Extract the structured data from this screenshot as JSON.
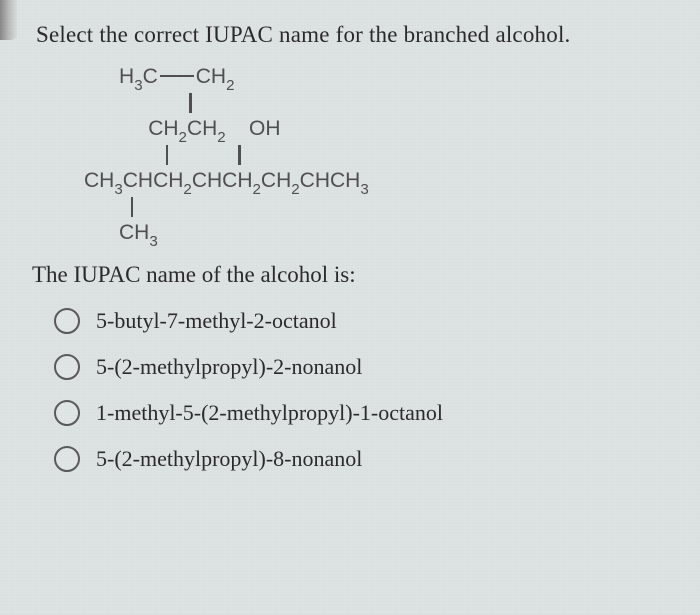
{
  "question": "Select the correct IUPAC name for the branched alcohol.",
  "structure": {
    "row1_a": "H",
    "row1_b": "C",
    "row1_c": "CH",
    "row2_a": "CH",
    "row2_b": "CH",
    "row2_c": "OH",
    "row3_a": "CH",
    "row3_b": "CHCH",
    "row3_c": "CHCH",
    "row3_d": "CH",
    "row3_e": "CHCH",
    "row4": "CH",
    "sub3": "3",
    "sub2": "2"
  },
  "prompt": "The IUPAC name of the alcohol is:",
  "options": [
    "5-butyl-7-methyl-2-octanol",
    "5-(2-methylpropyl)-2-nonanol",
    "1-methyl-5-(2-methylpropyl)-1-octanol",
    "5-(2-methylpropyl)-8-nonanol"
  ],
  "colors": {
    "background": "#dde2e3",
    "text_primary": "#2b2b2b",
    "text_structure": "#505050",
    "radio_border": "#5a5a5a"
  }
}
